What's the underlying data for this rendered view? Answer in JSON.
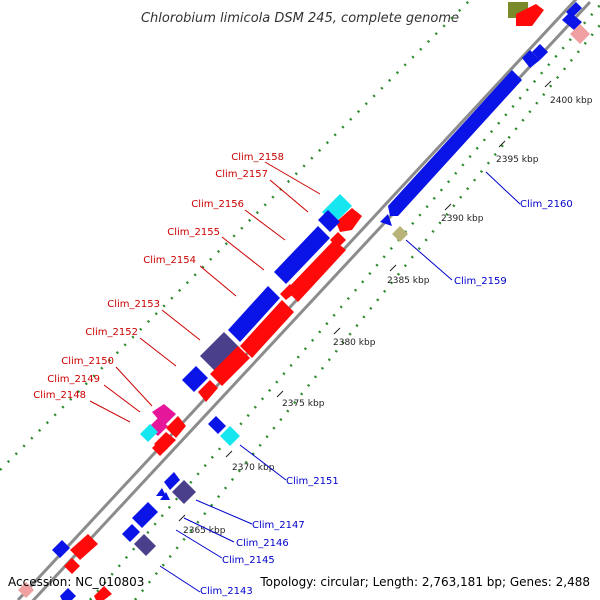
{
  "title": "Chlorobium limicola DSM 245, complete genome",
  "footer": {
    "accession": "Accession: NC_010803",
    "summary": "Topology: circular; Length: 2,763,181 bp; Genes: 2,488"
  },
  "scale_labels": [
    {
      "name": "scale-2400",
      "text": "2400 kbp"
    },
    {
      "name": "scale-2395",
      "text": "2395 kbp"
    },
    {
      "name": "scale-2390",
      "text": "2390 kbp"
    },
    {
      "name": "scale-2385",
      "text": "2385 kbp"
    },
    {
      "name": "scale-2380",
      "text": "2380 kbp"
    },
    {
      "name": "scale-2375",
      "text": "2375 kbp"
    },
    {
      "name": "scale-2370",
      "text": "2370 kbp"
    },
    {
      "name": "scale-2365",
      "text": "2365 kbp"
    }
  ],
  "gene_labels_left": [
    "Clim_2158",
    "Clim_2157",
    "Clim_2156",
    "Clim_2155",
    "Clim_2154",
    "Clim_2153",
    "Clim_2152",
    "Clim_2150",
    "Clim_2149",
    "Clim_2148"
  ],
  "gene_labels_right": [
    "Clim_2160",
    "Clim_2159",
    "Clim_2151",
    "Clim_2147",
    "Clim_2146",
    "Clim_2145",
    "Clim_2143"
  ],
  "colors": {
    "backbone": "#8c8c8c",
    "cds_blue": "#0a14e6",
    "cds_red": "#ff0a0a",
    "cds_navy": "#4a3f8a",
    "cds_cyan": "#16e6f0",
    "cds_pink": "#e6169a",
    "cds_olive": "#7a8a2a",
    "cds_khaki": "#b8b478",
    "gc_dots": "#2e8b2e",
    "left_label": "#cc0000",
    "right_label": "#0000cc"
  }
}
